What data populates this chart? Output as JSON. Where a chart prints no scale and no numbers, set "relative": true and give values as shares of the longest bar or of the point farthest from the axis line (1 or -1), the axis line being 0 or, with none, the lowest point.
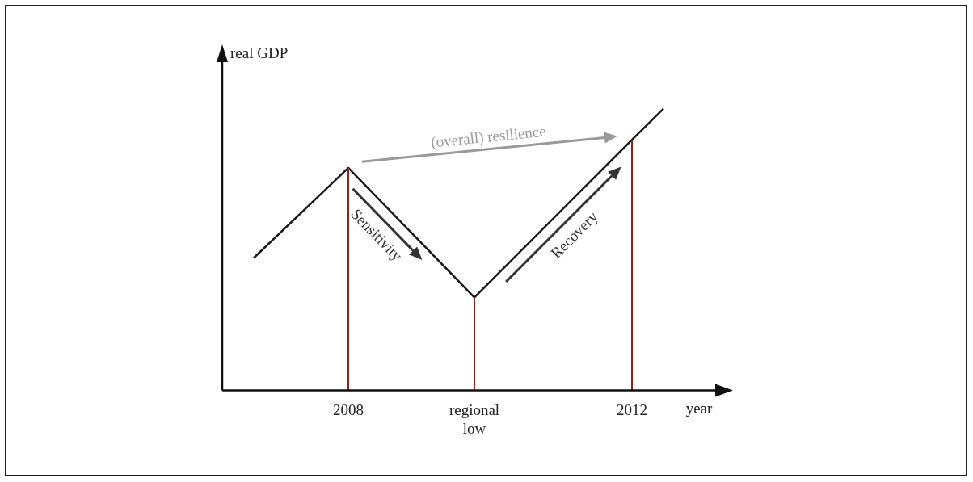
{
  "chart_data": {
    "type": "line",
    "relative": true,
    "xlabel": "year",
    "ylabel": "real GDP",
    "categories": [
      null,
      null,
      null,
      null,
      "2008",
      null,
      null,
      null,
      "regional low",
      null,
      null,
      null,
      null,
      "2012",
      null,
      null,
      null
    ],
    "values": [
      null,
      0.47,
      null,
      null,
      0.79,
      null,
      null,
      null,
      0.33,
      null,
      null,
      null,
      null,
      0.89,
      1,
      null,
      null
    ],
    "color": "#1a1a1a",
    "marker": "none",
    "grid": false,
    "legend": false,
    "tick_labels": "x",
    "ref_lines": [
      {
        "axis": "x",
        "value": "2008",
        "color": "#8b2323"
      },
      {
        "axis": "x",
        "value": "regional low",
        "color": "#8b2323"
      },
      {
        "axis": "x",
        "value": "2012",
        "color": "#8b2323"
      }
    ],
    "annotations": [
      "(overall) resilience",
      "Sensitivity",
      "Recovery"
    ]
  }
}
